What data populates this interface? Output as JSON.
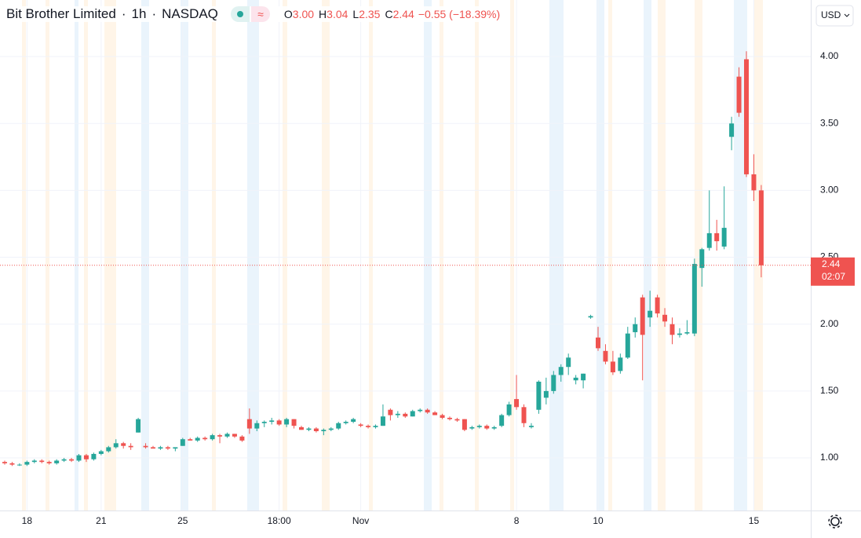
{
  "chart_data": {
    "type": "candlestick",
    "title": "Bit Brother Limited",
    "interval": "1h",
    "exchange": "NASDAQ",
    "ohlc": [
      {
        "key": "O",
        "value": "3.00"
      },
      {
        "key": "H",
        "value": "3.04"
      },
      {
        "key": "L",
        "value": "2.35"
      },
      {
        "key": "C",
        "value": "2.44"
      }
    ],
    "change": "−0.55 (−18.39%)",
    "currency": "USD",
    "last_price": {
      "value": 2.44,
      "label": "2.44"
    },
    "countdown": "02:07",
    "up_color": "#26a69a",
    "down_color": "#ef5350",
    "ylim": [
      0.607,
      4.423
    ],
    "yticks": [
      {
        "value": 1,
        "label": "1.00"
      },
      {
        "value": 1.5,
        "label": "1.50"
      },
      {
        "value": 2,
        "label": "2.00"
      },
      {
        "value": 2.5,
        "label": "2.50"
      },
      {
        "value": 3,
        "label": "3.00"
      },
      {
        "value": 3.5,
        "label": "3.50"
      },
      {
        "value": 4,
        "label": "4.00"
      }
    ],
    "grid": true,
    "categories": [
      null,
      null,
      null,
      "18",
      null,
      null,
      null,
      null,
      null,
      null,
      null,
      null,
      null,
      "21",
      null,
      null,
      null,
      null,
      null,
      null,
      null,
      null,
      null,
      null,
      "25",
      null,
      null,
      null,
      null,
      null,
      null,
      null,
      null,
      null,
      null,
      null,
      null,
      "18:00",
      null,
      null,
      null,
      null,
      null,
      null,
      null,
      null,
      null,
      null,
      "Nov",
      null,
      null,
      null,
      null,
      null,
      null,
      null,
      null,
      null,
      null,
      null,
      null,
      null,
      null,
      null,
      null,
      null,
      null,
      null,
      null,
      "8",
      null,
      null,
      null,
      null,
      null,
      null,
      null,
      null,
      null,
      null,
      "10",
      null,
      null,
      null,
      null,
      null,
      null,
      null,
      null,
      null,
      null,
      null,
      null,
      null,
      null,
      null,
      null,
      null,
      null,
      null,
      null,
      "15",
      null
    ],
    "open": [
      0.97,
      0.96,
      0.95,
      0.95,
      0.97,
      0.98,
      0.97,
      0.96,
      0.98,
      0.99,
      0.98,
      1.02,
      0.99,
      1.03,
      1.05,
      1.08,
      1.11,
      1.09,
      1.19,
      1.09,
      1.08,
      1.07,
      1.08,
      1.07,
      1.09,
      1.14,
      1.13,
      1.15,
      1.14,
      1.17,
      1.16,
      1.18,
      1.16,
      1.29,
      1.22,
      1.26,
      1.27,
      1.28,
      1.25,
      1.29,
      1.23,
      1.21,
      1.22,
      1.2,
      1.21,
      1.22,
      1.26,
      1.27,
      1.25,
      1.24,
      1.23,
      1.24,
      1.36,
      1.32,
      1.33,
      1.31,
      1.35,
      1.36,
      1.34,
      1.32,
      1.3,
      1.29,
      1.29,
      1.22,
      1.23,
      1.24,
      1.22,
      1.24,
      1.32,
      1.44,
      1.38,
      1.23,
      1.36,
      1.45,
      1.5,
      1.62,
      1.68,
      1.58,
      1.58,
      2.05,
      1.9,
      1.8,
      1.72,
      1.65,
      1.75,
      1.94,
      2.2,
      2.05,
      2.2,
      2.07,
      2.0,
      1.92,
      1.93,
      1.93,
      2.42,
      2.57,
      2.68,
      2.58,
      3.4,
      3.85,
      3.98,
      3.12,
      3.0
    ],
    "high": [
      0.98,
      0.97,
      0.96,
      0.98,
      0.99,
      0.99,
      0.98,
      0.99,
      1.0,
      1.0,
      1.03,
      1.03,
      1.04,
      1.06,
      1.09,
      1.14,
      1.12,
      1.11,
      1.3,
      1.11,
      1.09,
      1.09,
      1.09,
      1.08,
      1.15,
      1.15,
      1.16,
      1.16,
      1.18,
      1.18,
      1.19,
      1.18,
      1.17,
      1.37,
      1.28,
      1.28,
      1.3,
      1.29,
      1.3,
      1.29,
      1.24,
      1.23,
      1.23,
      1.22,
      1.23,
      1.27,
      1.28,
      1.3,
      1.26,
      1.25,
      1.25,
      1.4,
      1.37,
      1.35,
      1.34,
      1.36,
      1.37,
      1.37,
      1.35,
      1.33,
      1.31,
      1.3,
      1.29,
      1.24,
      1.25,
      1.25,
      1.24,
      1.33,
      1.42,
      1.62,
      1.4,
      1.26,
      1.58,
      1.6,
      1.65,
      1.7,
      1.78,
      1.62,
      1.63,
      2.07,
      1.98,
      1.85,
      1.8,
      1.78,
      1.98,
      2.05,
      2.22,
      2.25,
      2.22,
      2.12,
      2.05,
      1.97,
      2.03,
      2.49,
      2.57,
      3.0,
      2.78,
      3.03,
      3.55,
      3.92,
      4.04,
      3.27,
      3.04
    ],
    "low": [
      0.95,
      0.94,
      0.94,
      0.94,
      0.96,
      0.96,
      0.95,
      0.95,
      0.97,
      0.97,
      0.97,
      0.97,
      0.98,
      1.02,
      1.04,
      1.07,
      1.07,
      1.06,
      1.19,
      1.07,
      1.07,
      1.06,
      1.06,
      1.05,
      1.09,
      1.13,
      1.12,
      1.13,
      1.13,
      1.11,
      1.15,
      1.15,
      1.12,
      1.18,
      1.2,
      1.23,
      1.25,
      1.24,
      1.23,
      1.22,
      1.21,
      1.2,
      1.19,
      1.17,
      1.2,
      1.21,
      1.25,
      1.26,
      1.23,
      1.22,
      1.22,
      1.24,
      1.28,
      1.3,
      1.3,
      1.31,
      1.34,
      1.33,
      1.32,
      1.29,
      1.28,
      1.27,
      1.2,
      1.21,
      1.22,
      1.21,
      1.21,
      1.23,
      1.31,
      1.36,
      1.23,
      1.22,
      1.33,
      1.4,
      1.48,
      1.57,
      1.62,
      1.55,
      1.52,
      2.04,
      1.8,
      1.7,
      1.62,
      1.63,
      1.74,
      1.9,
      1.58,
      1.98,
      2.05,
      1.98,
      1.85,
      1.9,
      1.92,
      1.91,
      2.28,
      2.55,
      2.55,
      2.56,
      3.3,
      3.55,
      3.1,
      2.92,
      2.35
    ],
    "close": [
      0.96,
      0.95,
      0.95,
      0.97,
      0.98,
      0.97,
      0.96,
      0.98,
      0.99,
      0.98,
      1.02,
      0.99,
      1.03,
      1.05,
      1.08,
      1.11,
      1.09,
      1.08,
      1.29,
      1.08,
      1.07,
      1.08,
      1.07,
      1.08,
      1.14,
      1.13,
      1.15,
      1.14,
      1.17,
      1.16,
      1.18,
      1.16,
      1.13,
      1.22,
      1.26,
      1.27,
      1.28,
      1.25,
      1.29,
      1.24,
      1.21,
      1.22,
      1.2,
      1.21,
      1.22,
      1.26,
      1.27,
      1.29,
      1.24,
      1.23,
      1.24,
      1.31,
      1.32,
      1.33,
      1.31,
      1.35,
      1.36,
      1.34,
      1.32,
      1.3,
      1.29,
      1.28,
      1.21,
      1.23,
      1.24,
      1.22,
      1.23,
      1.32,
      1.4,
      1.38,
      1.26,
      1.24,
      1.57,
      1.5,
      1.62,
      1.68,
      1.75,
      1.6,
      1.63,
      2.06,
      1.82,
      1.72,
      1.64,
      1.75,
      1.93,
      2.0,
      1.92,
      2.1,
      2.08,
      2.02,
      1.92,
      1.93,
      1.94,
      2.45,
      2.56,
      2.68,
      2.62,
      2.72,
      3.5,
      3.58,
      3.12,
      3.0,
      2.44
    ]
  }
}
